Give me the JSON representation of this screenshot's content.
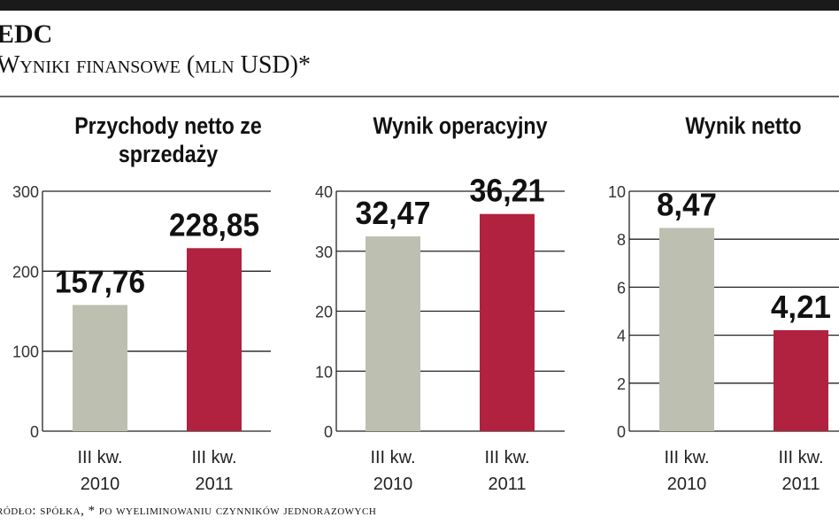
{
  "header": {
    "company": "EDC",
    "subtitle": "Wyniki finansowe (mln USD)*"
  },
  "footer": {
    "source": "ródło: spółka, * po wyeliminowaniu czynników jednorazowych"
  },
  "colors": {
    "bar_2010": "#bdbfb0",
    "bar_2011": "#b0223f",
    "gridline": "#222222"
  },
  "chart_data": [
    {
      "type": "bar",
      "title": "Przychody netto ze sprzedaży",
      "categories": [
        "III kw. 2010",
        "III kw. 2011"
      ],
      "values": [
        157.76,
        228.85
      ],
      "data_labels": [
        "157,76",
        "228,85"
      ],
      "yticks": [
        0,
        100,
        200,
        300
      ],
      "ylim": [
        0,
        300
      ],
      "grid": true
    },
    {
      "type": "bar",
      "title": "Wynik operacyjny",
      "categories": [
        "III kw. 2010",
        "III kw. 2011"
      ],
      "values": [
        32.47,
        36.21
      ],
      "data_labels": [
        "32,47",
        "36,21"
      ],
      "yticks": [
        0,
        10,
        20,
        30,
        40
      ],
      "ylim": [
        0,
        40
      ],
      "grid": true
    },
    {
      "type": "bar",
      "title": "Wynik netto",
      "categories": [
        "III kw. 2010",
        "III kw. 2011"
      ],
      "values": [
        8.47,
        4.21
      ],
      "data_labels": [
        "8,47",
        "4,21"
      ],
      "yticks": [
        0,
        2,
        4,
        6,
        8,
        10
      ],
      "ylim": [
        0,
        10
      ],
      "grid": true
    }
  ]
}
